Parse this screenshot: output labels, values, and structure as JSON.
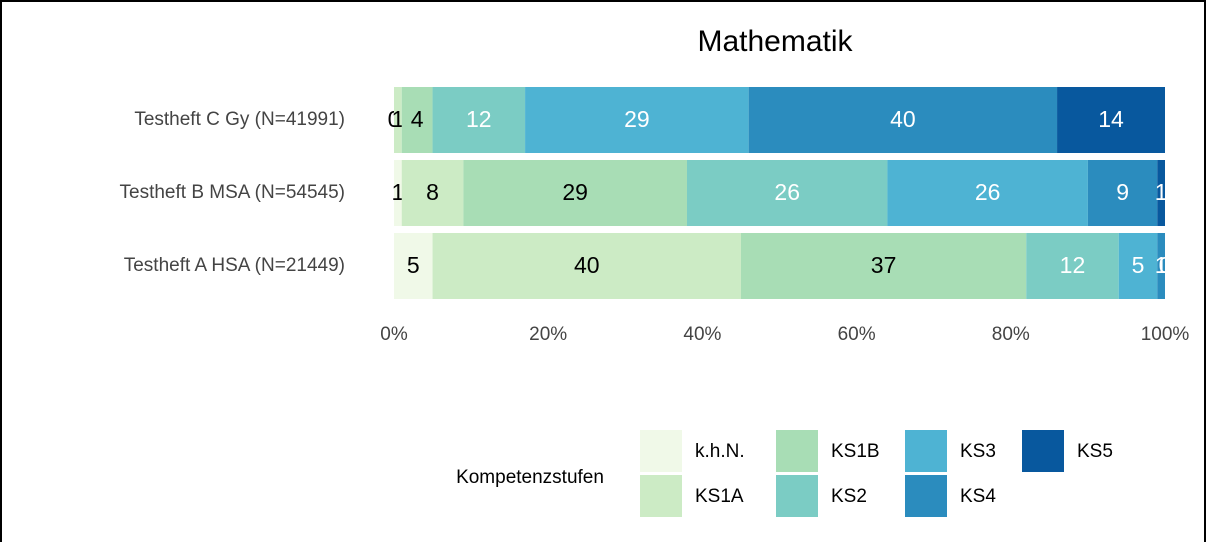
{
  "chart_data": {
    "type": "stacked_barh",
    "title": "Mathematik",
    "categories": [
      "Testheft C Gy (N=41991)",
      "Testheft B MSA (N=54545)",
      "Testheft A HSA (N=21449)"
    ],
    "series": [
      {
        "name": "k.h.N.",
        "color": "#f0f9e8",
        "values": [
          0,
          1,
          5
        ]
      },
      {
        "name": "KS1A",
        "color": "#ccebc5",
        "values": [
          1,
          8,
          40
        ]
      },
      {
        "name": "KS1B",
        "color": "#a8ddb5",
        "values": [
          4,
          29,
          37
        ]
      },
      {
        "name": "KS2",
        "color": "#7bccc4",
        "values": [
          12,
          26,
          12
        ]
      },
      {
        "name": "KS3",
        "color": "#4eb3d3",
        "values": [
          29,
          26,
          5
        ]
      },
      {
        "name": "KS4",
        "color": "#2b8cbe",
        "values": [
          40,
          9,
          1
        ]
      },
      {
        "name": "KS5",
        "color": "#08589e",
        "values": [
          14,
          1,
          0
        ]
      }
    ],
    "xlim": [
      0,
      100
    ],
    "xticks": [
      {
        "value": 0,
        "label": "0%"
      },
      {
        "value": 20,
        "label": "20%"
      },
      {
        "value": 40,
        "label": "40%"
      },
      {
        "value": 60,
        "label": "60%"
      },
      {
        "value": 80,
        "label": "80%"
      },
      {
        "value": 100,
        "label": "100%"
      }
    ],
    "legend_title": "Kompetenzstufen",
    "legend": "bottom",
    "grid": false
  }
}
